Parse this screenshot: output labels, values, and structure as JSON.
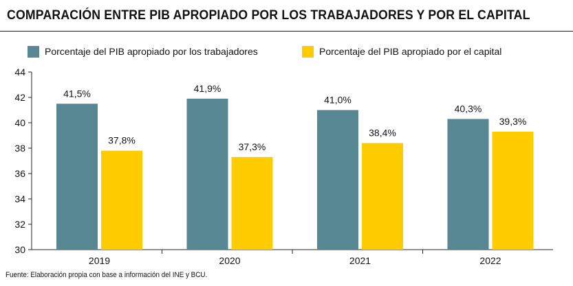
{
  "title": "COMPARACIÓN ENTRE PIB APROPIADO POR LOS TRABAJADORES Y POR EL CAPITAL",
  "source": "Fuente: Elaboración propia con base a información del INE y BCU.",
  "colors": {
    "workers": "#568793",
    "capital": "#FFCC00",
    "axis": "#222222"
  },
  "chart_data": {
    "type": "bar",
    "title": "COMPARACIÓN ENTRE PIB APROPIADO POR LOS TRABAJADORES Y POR EL CAPITAL",
    "categories": [
      "2019",
      "2020",
      "2021",
      "2022"
    ],
    "series": [
      {
        "name": "Porcentaje del PIB apropiado por los trabajadores",
        "values": [
          41.5,
          41.9,
          41.0,
          40.3
        ],
        "labels": [
          "41,5%",
          "41,9%",
          "41,0%",
          "40,3%"
        ]
      },
      {
        "name": "Porcentaje del PIB apropiado por el capital",
        "values": [
          37.8,
          37.3,
          38.4,
          39.3
        ],
        "labels": [
          "37,8%",
          "37,3%",
          "38,4%",
          "39,3%"
        ]
      }
    ],
    "yticks": [
      "30",
      "32",
      "34",
      "36",
      "38",
      "40",
      "42",
      "44"
    ],
    "ylim": [
      30,
      44
    ],
    "xlabel": "",
    "ylabel": "",
    "grid": false,
    "legend": "top"
  }
}
